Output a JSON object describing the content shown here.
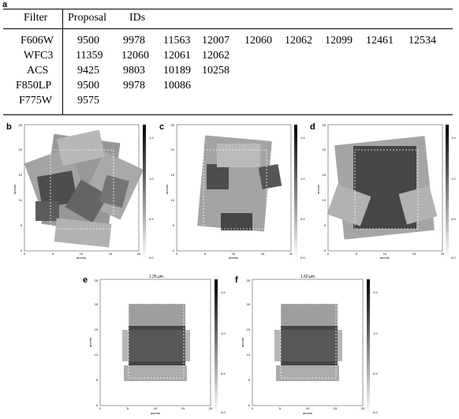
{
  "panel_labels": {
    "a": "a",
    "b": "b",
    "c": "c",
    "d": "d",
    "e": "e",
    "f": "f"
  },
  "table": {
    "headers": {
      "filter": "Filter",
      "proposal": "Proposal",
      "ids": "IDs"
    },
    "rows": [
      {
        "filter": "F606W",
        "values": [
          "9500",
          "9978",
          "11563",
          "12007",
          "12060",
          "12062",
          "12099",
          "12461",
          "12534"
        ]
      },
      {
        "filter": "WFC3",
        "values": [
          "11359",
          "12060",
          "12061",
          "12062"
        ]
      },
      {
        "filter": "ACS",
        "values": [
          "9425",
          "9803",
          "10189",
          "10258"
        ]
      },
      {
        "filter": "F850LP",
        "values": [
          "9500",
          "9978",
          "10086"
        ]
      },
      {
        "filter": "F775W",
        "values": [
          "9575"
        ]
      }
    ]
  },
  "maps": {
    "axis_label": "arcmin",
    "x_ticks": [
      "0",
      "5",
      "10",
      "15",
      "20"
    ],
    "y_ticks": [
      "0",
      "5",
      "10",
      "15",
      "20",
      "25"
    ],
    "colorbar_ticks": [
      "0.0",
      "0.5",
      "1.0",
      "1.5"
    ],
    "panel_e_title": "1.25 μm",
    "panel_f_title": "1.60 μm"
  }
}
